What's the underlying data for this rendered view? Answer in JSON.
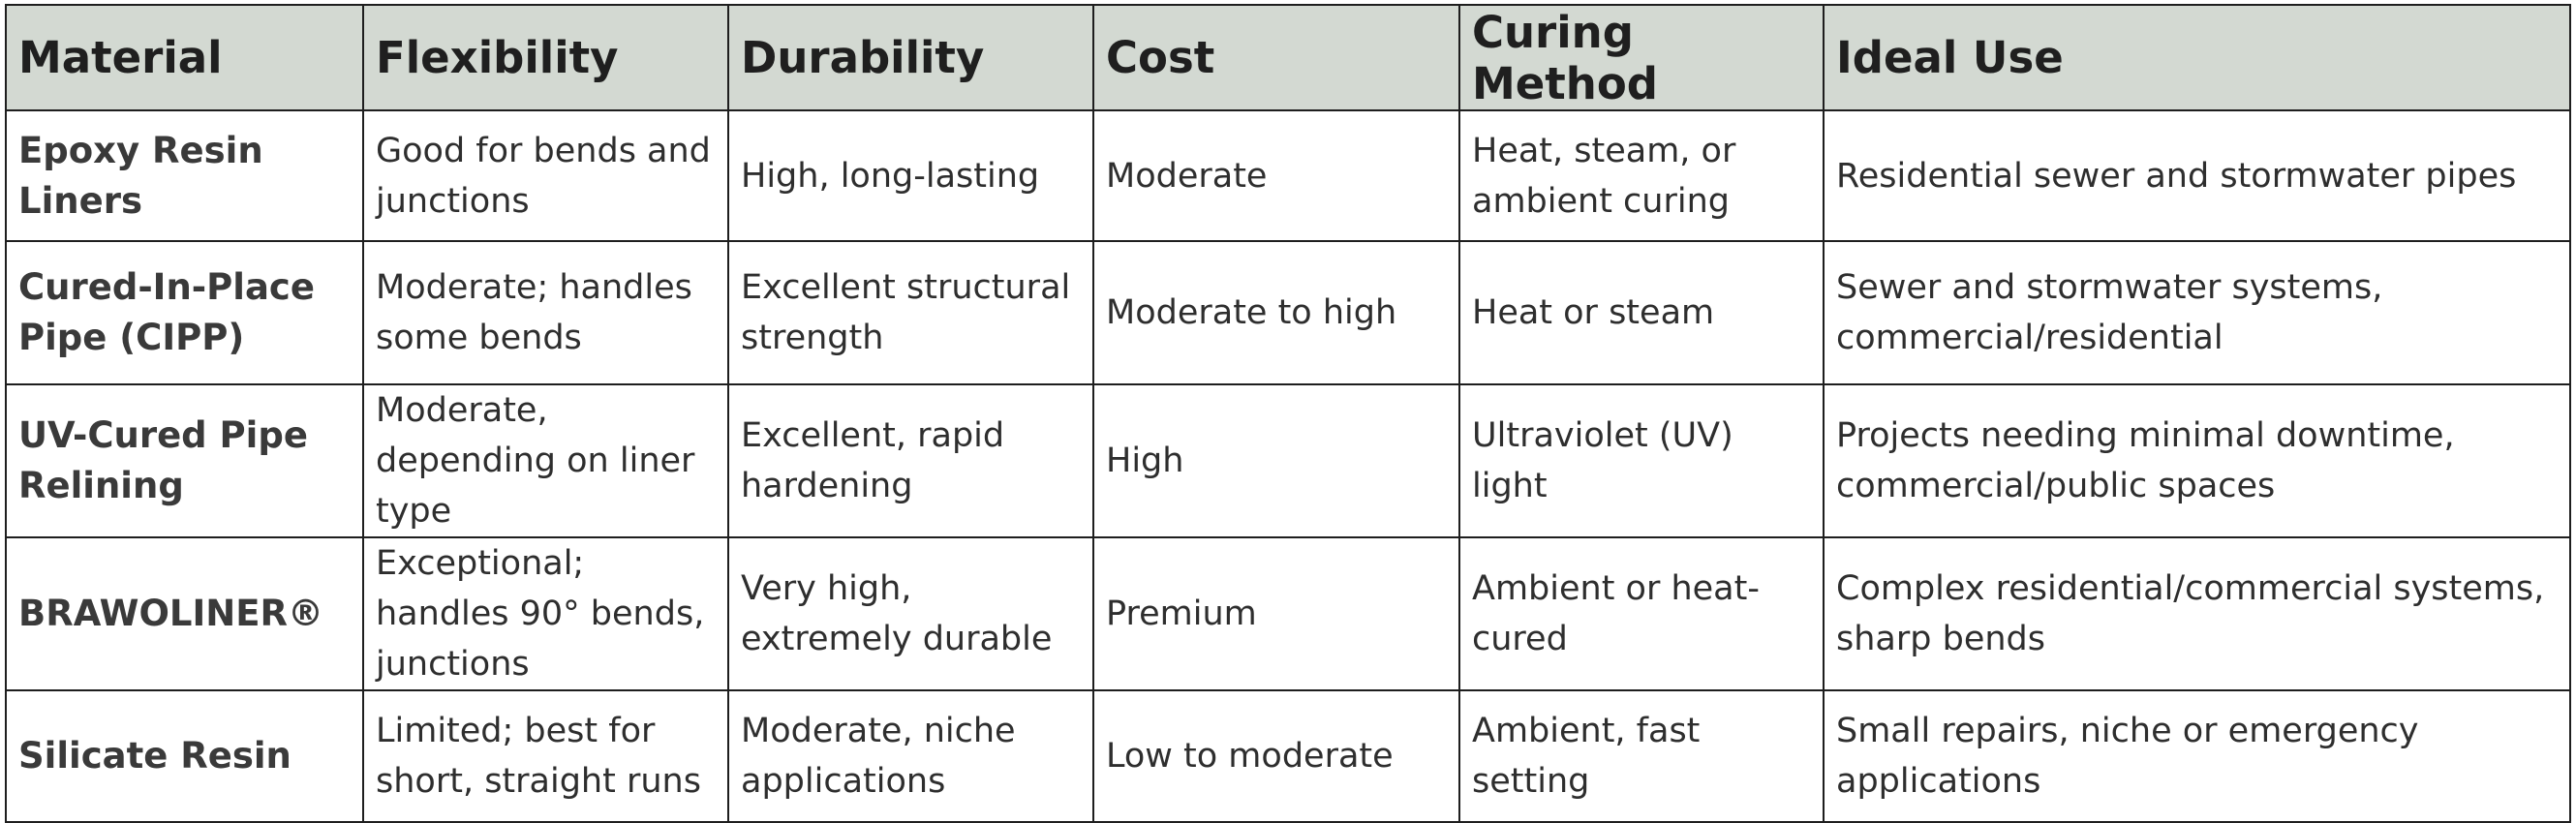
{
  "table": {
    "headers": [
      "Material",
      "Flexibility",
      "Durability",
      "Cost",
      "Curing Method",
      "Ideal Use"
    ],
    "rows": [
      [
        "Epoxy Resin Liners",
        "Good for bends and junctions",
        "High, long-lasting",
        "Moderate",
        "Heat, steam, or ambient curing",
        "Residential sewer and stormwater pipes"
      ],
      [
        "Cured-In-Place Pipe (CIPP)",
        "Moderate; handles some bends",
        "Excellent structural strength",
        "Moderate to high",
        "Heat or steam",
        "Sewer and stormwater systems, commercial/residential"
      ],
      [
        "UV-Cured Pipe Relining",
        "Moderate, depending on liner type",
        "Excellent, rapid hardening",
        "High",
        "Ultraviolet (UV) light",
        "Projects needing minimal downtime, commercial/public spaces"
      ],
      [
        "BRAWOLINER®",
        "Exceptional; handles 90° bends, junctions",
        "Very high, extremely durable",
        "Premium",
        "Ambient or heat-cured",
        "Complex residential/commercial systems, sharp bends"
      ],
      [
        "Silicate Resin",
        "Limited; best for short, straight runs",
        "Moderate, niche applications",
        "Low to moderate",
        "Ambient, fast setting",
        "Small repairs, niche or emergency applications"
      ]
    ]
  }
}
